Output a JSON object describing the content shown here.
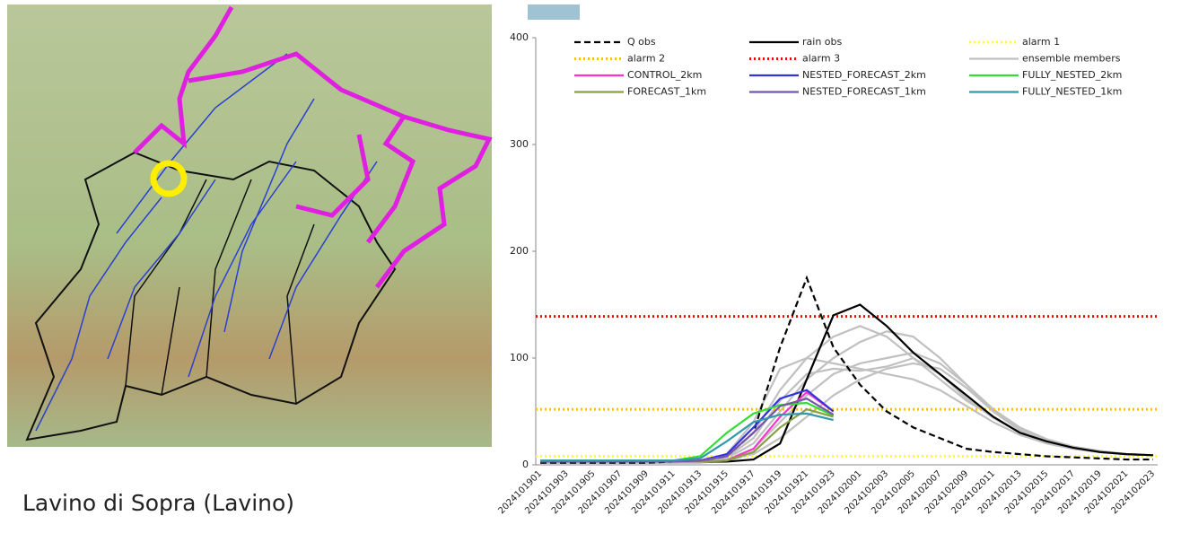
{
  "caption": "Lavino di Sopra (Lavino)",
  "chart_data": {
    "type": "line",
    "categories": [
      "2024101901",
      "2024101903",
      "2024101905",
      "2024101907",
      "2024101909",
      "2024101911",
      "2024101913",
      "2024101915",
      "2024101917",
      "2024101919",
      "2024101921",
      "2024101923",
      "2024102001",
      "2024102003",
      "2024102005",
      "2024102007",
      "2024102009",
      "2024102011",
      "2024102013",
      "2024102015",
      "2024102017",
      "2024102019",
      "2024102021",
      "2024102023"
    ],
    "ylim": [
      0,
      400
    ],
    "yticks": [
      0,
      100,
      200,
      300,
      400
    ],
    "series": [
      {
        "name": "Q obs",
        "color": "#000000",
        "style": "dashed",
        "values": [
          2,
          2,
          2,
          2,
          2,
          3,
          4,
          8,
          30,
          110,
          175,
          110,
          75,
          50,
          35,
          25,
          15,
          12,
          10,
          8,
          7,
          6,
          5,
          5
        ]
      },
      {
        "name": "rain obs",
        "color": "#000000",
        "style": "solid",
        "values": [
          3,
          3,
          3,
          3,
          3,
          3,
          3,
          3,
          5,
          20,
          80,
          140,
          150,
          130,
          105,
          85,
          65,
          45,
          30,
          22,
          16,
          12,
          10,
          9
        ]
      },
      {
        "name": "alarm 1",
        "color": "#ffff33",
        "style": "dotted",
        "value": 8
      },
      {
        "name": "alarm 2",
        "color": "#ffc000",
        "style": "dotted",
        "value": 52
      },
      {
        "name": "alarm 3",
        "color": "#ff0000",
        "style": "dotted",
        "value": 139
      },
      {
        "name": "ensemble members",
        "color": "#c0c0c0",
        "style": "solid",
        "members": [
          [
            2,
            2,
            2,
            2,
            2,
            2,
            3,
            8,
            30,
            70,
            100,
            120,
            130,
            120,
            100,
            80,
            60,
            45,
            30,
            22,
            16,
            12,
            10,
            9
          ],
          [
            2,
            2,
            2,
            2,
            2,
            2,
            3,
            6,
            20,
            50,
            80,
            100,
            115,
            125,
            120,
            100,
            75,
            50,
            32,
            22,
            16,
            12,
            10,
            9
          ],
          [
            2,
            2,
            2,
            2,
            2,
            2,
            2,
            5,
            15,
            40,
            65,
            85,
            95,
            100,
            105,
            95,
            75,
            52,
            35,
            24,
            17,
            13,
            10,
            9
          ],
          [
            2,
            2,
            2,
            2,
            2,
            2,
            3,
            10,
            40,
            90,
            100,
            95,
            90,
            85,
            80,
            70,
            55,
            40,
            28,
            20,
            15,
            12,
            10,
            9
          ],
          [
            2,
            2,
            2,
            2,
            2,
            2,
            2,
            4,
            10,
            25,
            45,
            65,
            80,
            90,
            95,
            90,
            72,
            50,
            34,
            24,
            17,
            13,
            10,
            9
          ],
          [
            2,
            2,
            2,
            2,
            2,
            2,
            3,
            7,
            25,
            60,
            85,
            90,
            88,
            92,
            100,
            85,
            62,
            44,
            30,
            21,
            15,
            12,
            10,
            9
          ]
        ]
      },
      {
        "name": "CONTROL_2km",
        "color": "#ff33cc",
        "style": "solid",
        "values": [
          3,
          3,
          3,
          3,
          3,
          3,
          3,
          4,
          15,
          45,
          68,
          50,
          null,
          null,
          null,
          null,
          null,
          null,
          null,
          null,
          null,
          null,
          null,
          null
        ]
      },
      {
        "name": "NESTED_FORECAST_2km",
        "color": "#3333dd",
        "style": "solid",
        "values": [
          3,
          3,
          3,
          3,
          3,
          3,
          4,
          10,
          35,
          62,
          70,
          50,
          null,
          null,
          null,
          null,
          null,
          null,
          null,
          null,
          null,
          null,
          null,
          null
        ]
      },
      {
        "name": "FULLY_NESTED_2km",
        "color": "#33dd33",
        "style": "solid",
        "values": [
          4,
          4,
          4,
          4,
          4,
          4,
          8,
          30,
          48,
          56,
          58,
          46,
          null,
          null,
          null,
          null,
          null,
          null,
          null,
          null,
          null,
          null,
          null,
          null
        ]
      },
      {
        "name": "FORECAST_1km",
        "color": "#88a044",
        "style": "solid",
        "values": [
          3,
          3,
          3,
          3,
          3,
          3,
          3,
          4,
          12,
          35,
          52,
          45,
          null,
          null,
          null,
          null,
          null,
          null,
          null,
          null,
          null,
          null,
          null,
          null
        ]
      },
      {
        "name": "NESTED_FORECAST_1km",
        "color": "#7755aa",
        "style": "solid",
        "values": [
          3,
          3,
          3,
          3,
          3,
          3,
          4,
          8,
          30,
          55,
          62,
          47,
          null,
          null,
          null,
          null,
          null,
          null,
          null,
          null,
          null,
          null,
          null,
          null
        ]
      },
      {
        "name": "FULLY_NESTED_1km",
        "color": "#3399aa",
        "style": "solid",
        "values": [
          4,
          4,
          4,
          4,
          4,
          4,
          6,
          22,
          40,
          47,
          48,
          42,
          null,
          null,
          null,
          null,
          null,
          null,
          null,
          null,
          null,
          null,
          null,
          null
        ]
      }
    ]
  }
}
